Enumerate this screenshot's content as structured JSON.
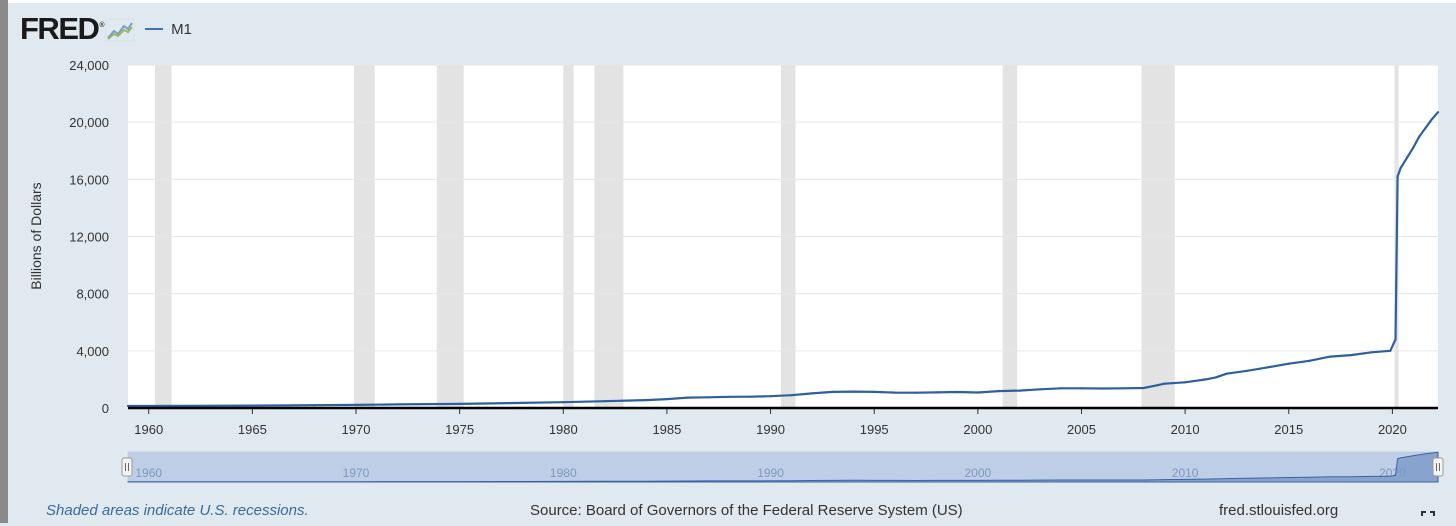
{
  "header": {
    "logo_text": "FRED",
    "logo_reg": "®",
    "legend_label": "M1"
  },
  "colors": {
    "series": "#2e5f9e",
    "recession": "#e3e3e3",
    "background": "#e1e9f0",
    "navigator_fill": "#b9c9e4"
  },
  "chart_data": {
    "type": "line",
    "title": "",
    "xlabel": "",
    "ylabel": "Billions of Dollars",
    "xlim": [
      1959,
      2022.2
    ],
    "ylim": [
      0,
      24000
    ],
    "y_ticks": [
      0,
      4000,
      8000,
      12000,
      16000,
      20000,
      24000
    ],
    "y_tick_labels": [
      "0",
      "4,000",
      "8,000",
      "12,000",
      "16,000",
      "20,000",
      "24,000"
    ],
    "x_ticks": [
      1960,
      1965,
      1970,
      1975,
      1980,
      1985,
      1990,
      1995,
      2000,
      2005,
      2010,
      2015,
      2020
    ],
    "x_tick_labels": [
      "1960",
      "1965",
      "1970",
      "1975",
      "1980",
      "1985",
      "1990",
      "1995",
      "2000",
      "2005",
      "2010",
      "2015",
      "2020"
    ],
    "grid": true,
    "legend": "top-left",
    "recessions": [
      [
        1960.3,
        1961.1
      ],
      [
        1969.9,
        1970.9
      ],
      [
        1973.9,
        1975.2
      ],
      [
        1980.0,
        1980.5
      ],
      [
        1981.5,
        1982.9
      ],
      [
        1990.5,
        1991.2
      ],
      [
        2001.2,
        2001.9
      ],
      [
        2007.9,
        2009.5
      ],
      [
        2020.1,
        2020.3
      ]
    ],
    "series": [
      {
        "name": "M1",
        "x": [
          1959,
          1962,
          1965,
          1968,
          1970,
          1972,
          1975,
          1978,
          1980,
          1982,
          1984,
          1985,
          1986,
          1987,
          1988,
          1989,
          1990,
          1991,
          1992,
          1993,
          1994,
          1995,
          1996,
          1997,
          1998,
          1999,
          2000,
          2001,
          2002,
          2003,
          2004,
          2005,
          2006,
          2007,
          2008,
          2008.7,
          2009,
          2010,
          2011,
          2011.5,
          2012,
          2013,
          2014,
          2015,
          2016,
          2017,
          2018,
          2019,
          2019.9,
          2020.15,
          2020.25,
          2020.4,
          2020.7,
          2021.0,
          2021.3,
          2021.6,
          2021.9,
          2022.2
        ],
        "values": [
          140,
          145,
          167,
          197,
          214,
          250,
          287,
          358,
          408,
          479,
          551,
          620,
          725,
          750,
          787,
          794,
          825,
          897,
          1025,
          1129,
          1150,
          1127,
          1081,
          1073,
          1095,
          1123,
          1088,
          1183,
          1220,
          1306,
          1376,
          1375,
          1366,
          1375,
          1400,
          1600,
          1700,
          1800,
          2000,
          2150,
          2400,
          2600,
          2850,
          3100,
          3300,
          3600,
          3700,
          3900,
          4000,
          4800,
          16200,
          16800,
          17500,
          18200,
          19000,
          19600,
          20200,
          20700
        ]
      }
    ]
  },
  "navigator": {
    "labels": [
      "1960",
      "1970",
      "1980",
      "1990",
      "2000",
      "2010",
      "2020"
    ]
  },
  "footer": {
    "recession_note": "Shaded areas indicate U.S. recessions.",
    "source": "Source: Board of Governors of the Federal Reserve System (US)",
    "site": "fred.stlouisfed.org"
  }
}
